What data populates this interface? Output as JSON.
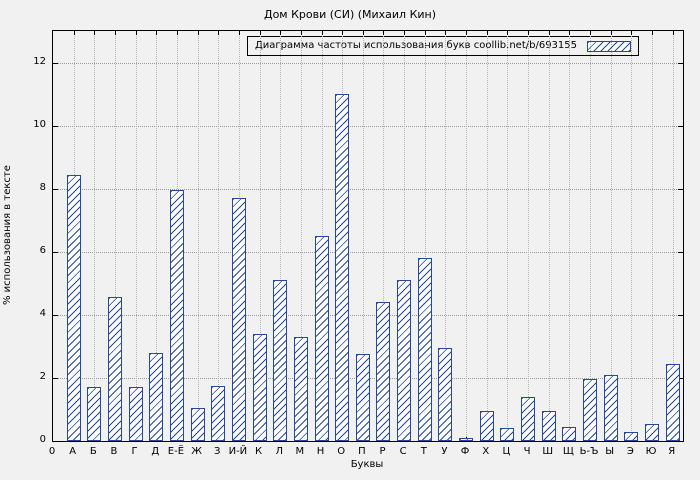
{
  "chart_data": {
    "type": "bar",
    "title": "Дом Крови (СИ) (Михаил Кин)",
    "legend_label": "Диаграмма частоты использования букв coollib.net/b/693155",
    "legend_position": "top-right",
    "xlabel": "Буквы",
    "ylabel": "% использования в тексте",
    "origin_label": "0",
    "categories": [
      "А",
      "Б",
      "В",
      "Г",
      "Д",
      "Е-Ё",
      "Ж",
      "З",
      "И-Й",
      "К",
      "Л",
      "М",
      "Н",
      "О",
      "П",
      "Р",
      "С",
      "Т",
      "У",
      "Ф",
      "Х",
      "Ц",
      "Ч",
      "Ш",
      "Щ",
      "Ь-Ъ",
      "Ы",
      "Э",
      "Ю",
      "Я"
    ],
    "values": [
      8.45,
      1.7,
      4.55,
      1.7,
      2.8,
      7.95,
      1.05,
      1.75,
      7.7,
      3.4,
      5.1,
      3.3,
      6.5,
      11.0,
      2.75,
      4.4,
      5.1,
      5.8,
      2.95,
      0.1,
      0.95,
      0.4,
      1.4,
      0.95,
      0.45,
      1.95,
      2.1,
      0.3,
      0.55,
      2.45
    ],
    "yticks": [
      0,
      2,
      4,
      6,
      8,
      10,
      12
    ],
    "ylim": [
      0,
      13
    ],
    "xlim": [
      0,
      30.5
    ],
    "grid": true,
    "bar_width_units": 0.7,
    "colors": {
      "bar_outline": "#26479e",
      "bar_hatch": "#26479e",
      "bar_fill": "#ffffff",
      "background": "#f1f1f1",
      "grid": "#9a9a9a",
      "text": "#000000"
    }
  }
}
